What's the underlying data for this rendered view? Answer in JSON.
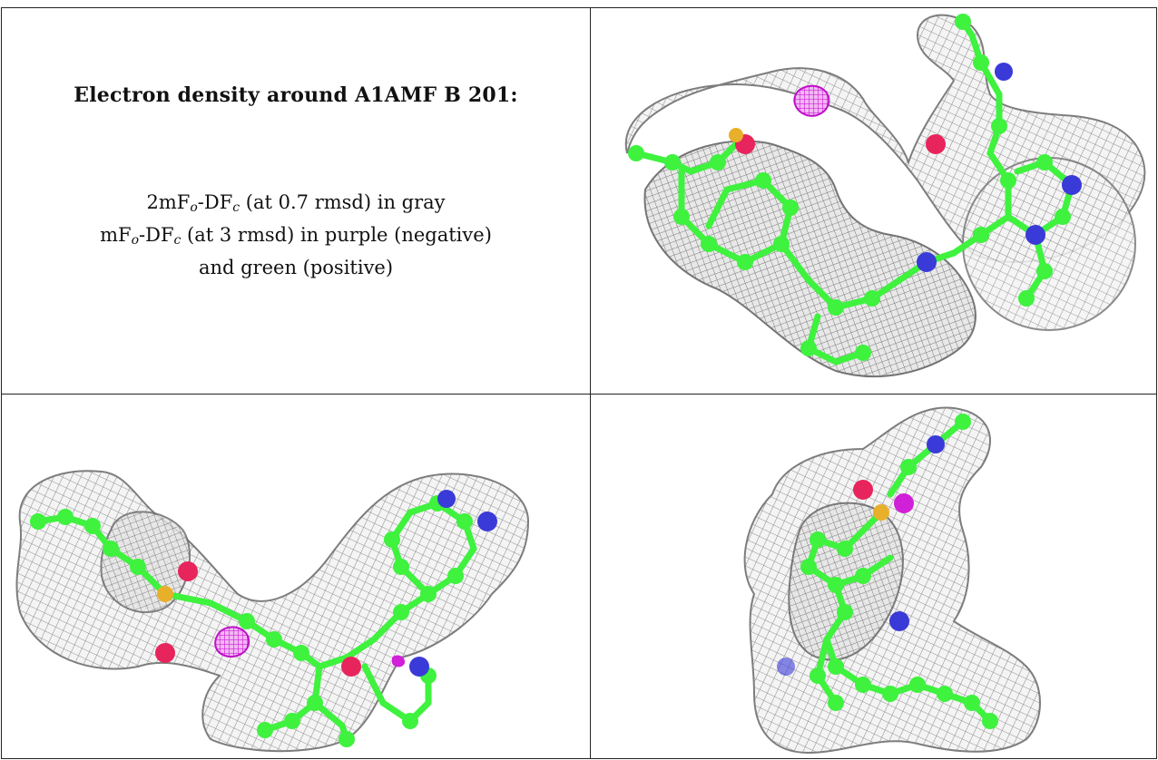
{
  "caption": {
    "title": "Electron density around A1AMF B 201:",
    "line1": {
      "a": "2mF",
      "o": "o",
      "b": "-DF",
      "c": "c",
      "rest": " (at 0.7 rmsd) in gray"
    },
    "line2": {
      "a": "mF",
      "o": "o",
      "b": "-DF",
      "c": "c",
      "rest": " (at 3 rmsd) in purple (negative)"
    },
    "line3": "and green (positive)"
  },
  "colors": {
    "carbon": "#3ef23e",
    "oxygen": "#e8245c",
    "nitrogen": "#3a3ad8",
    "sulfur": "#e8b02a",
    "negative_density": "#d020d8",
    "mesh": "#8a8a8a"
  },
  "panels": [
    {
      "name": "view-top-right"
    },
    {
      "name": "view-bottom-left"
    },
    {
      "name": "view-bottom-right"
    }
  ]
}
